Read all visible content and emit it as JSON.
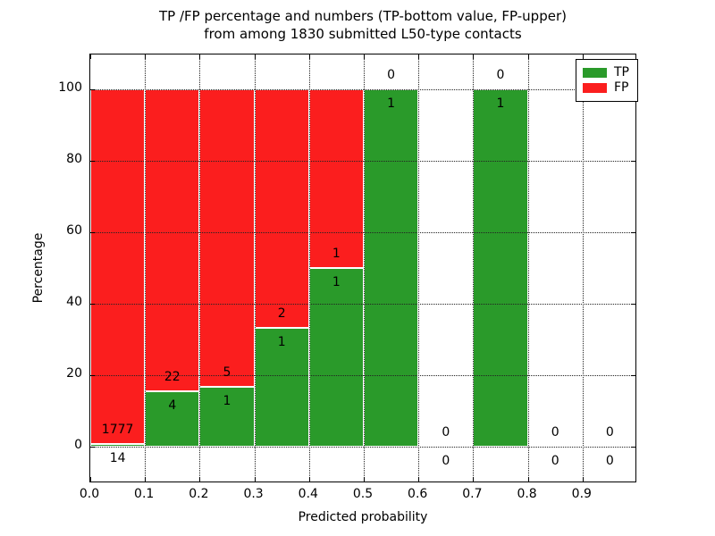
{
  "chart_data": {
    "type": "bar",
    "stacked": true,
    "title_line1": "TP /FP percentage and numbers (TP-bottom value, FP-upper)",
    "title_line2": "from among 1830 submitted L50-type contacts",
    "xlabel": "Predicted probability",
    "ylabel": "Percentage",
    "total_contacts": 1830,
    "xlim": [
      0.0,
      1.0
    ],
    "ylim": [
      -10.25,
      109.75
    ],
    "grid": true,
    "x_ticks": [
      {
        "value": 0.0,
        "label": "0.0"
      },
      {
        "value": 0.1,
        "label": "0.1"
      },
      {
        "value": 0.2,
        "label": "0.2"
      },
      {
        "value": 0.3,
        "label": "0.3"
      },
      {
        "value": 0.4,
        "label": "0.4"
      },
      {
        "value": 0.5,
        "label": "0.5"
      },
      {
        "value": 0.6,
        "label": "0.6"
      },
      {
        "value": 0.7,
        "label": "0.7"
      },
      {
        "value": 0.8,
        "label": "0.8"
      },
      {
        "value": 0.9,
        "label": "0.9"
      }
    ],
    "y_ticks": [
      {
        "value": 0,
        "label": "0"
      },
      {
        "value": 20,
        "label": "20"
      },
      {
        "value": 40,
        "label": "40"
      },
      {
        "value": 60,
        "label": "60"
      },
      {
        "value": 80,
        "label": "80"
      },
      {
        "value": 100,
        "label": "100"
      }
    ],
    "colors": {
      "tp": "#2a9a2a",
      "fp": "#fb1e1e"
    },
    "legend": [
      {
        "label": "TP",
        "color": "#2a9a2a"
      },
      {
        "label": "FP",
        "color": "#fb1e1e"
      }
    ],
    "legend_position": "upper right",
    "bins": [
      {
        "x_start": 0.0,
        "x_end": 0.1,
        "tp": 14,
        "fp": 1777
      },
      {
        "x_start": 0.1,
        "x_end": 0.2,
        "tp": 4,
        "fp": 22
      },
      {
        "x_start": 0.2,
        "x_end": 0.3,
        "tp": 1,
        "fp": 5
      },
      {
        "x_start": 0.3,
        "x_end": 0.4,
        "tp": 1,
        "fp": 2
      },
      {
        "x_start": 0.4,
        "x_end": 0.5,
        "tp": 1,
        "fp": 1
      },
      {
        "x_start": 0.5,
        "x_end": 0.6,
        "tp": 1,
        "fp": 0
      },
      {
        "x_start": 0.6,
        "x_end": 0.7,
        "tp": 0,
        "fp": 0
      },
      {
        "x_start": 0.7,
        "x_end": 0.8,
        "tp": 1,
        "fp": 0
      },
      {
        "x_start": 0.8,
        "x_end": 0.9,
        "tp": 0,
        "fp": 0
      },
      {
        "x_start": 0.9,
        "x_end": 1.0,
        "tp": 0,
        "fp": 0
      }
    ]
  }
}
